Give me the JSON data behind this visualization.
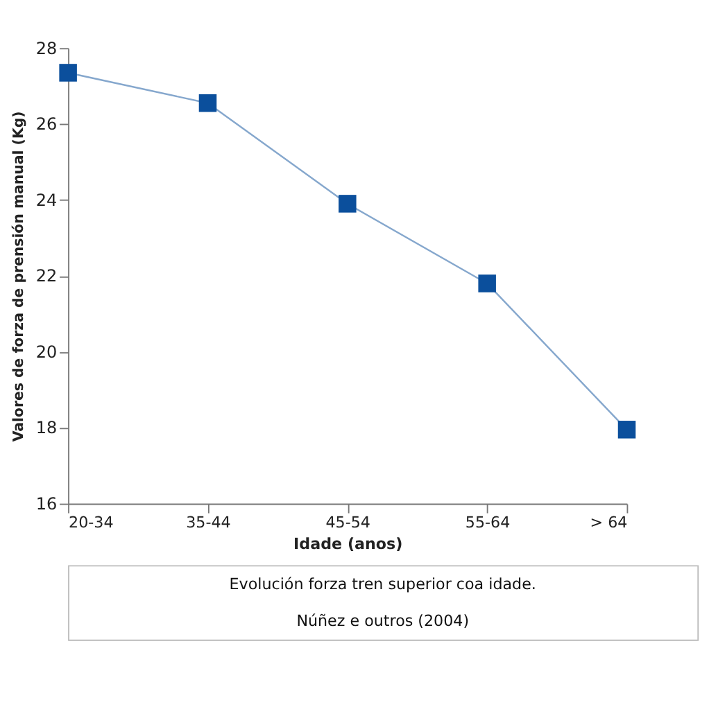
{
  "chart_data": {
    "type": "line",
    "categories": [
      "20-34",
      "35-44",
      "45-54",
      "55-64",
      "> 64"
    ],
    "series": [
      {
        "color": "#0b4f9c",
        "values": [
          27.35,
          26.55,
          23.9,
          21.8,
          17.95
        ]
      }
    ],
    "ylabel": "Valores de forza de prensión manual (Kg)",
    "xlabel": "Idade (anos)",
    "ylim": [
      16,
      28
    ],
    "yticks": [
      16,
      18,
      20,
      22,
      24,
      26,
      28
    ],
    "grid": false,
    "marker": "square",
    "line_style": "solid",
    "annotations": [
      "Evolución forza tren superior coa idade.",
      "Núñez e outros (2004)"
    ]
  }
}
